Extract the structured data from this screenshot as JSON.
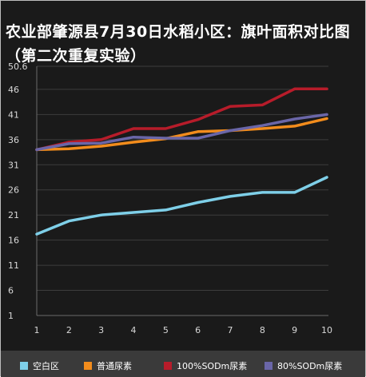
{
  "chart_data": {
    "type": "line",
    "title": "农业部肇源县7月30日水稻小区：旗叶面积对比图（第二次重复实验）",
    "xlabel": "",
    "ylabel": "",
    "x": [
      "1",
      "2",
      "3",
      "4",
      "5",
      "6",
      "7",
      "8",
      "9",
      "10"
    ],
    "ylim": [
      1,
      50.6
    ],
    "y_ticks": [
      "1",
      "6",
      "11",
      "16",
      "21",
      "26",
      "31",
      "36",
      "41",
      "46",
      "50.6"
    ],
    "grid": true,
    "legend_position": "bottom",
    "series": [
      {
        "name": "空白区",
        "color": "#7ecfe8",
        "values": [
          17.2,
          19.8,
          21.0,
          21.5,
          22.0,
          23.5,
          24.7,
          25.5,
          25.5,
          28.5
        ]
      },
      {
        "name": "普通尿素",
        "color": "#f28c1c",
        "values": [
          34.0,
          34.2,
          34.7,
          35.5,
          36.2,
          37.6,
          37.8,
          38.2,
          38.7,
          40.2
        ]
      },
      {
        "name": "100%SODm尿素",
        "color": "#b71c2a",
        "values": [
          34.0,
          35.5,
          36.0,
          38.2,
          38.2,
          40.0,
          42.6,
          42.9,
          46.1,
          46.1
        ]
      },
      {
        "name": "80%SODm尿素",
        "color": "#6a66a8",
        "values": [
          34.0,
          35.2,
          35.3,
          36.5,
          36.3,
          36.3,
          37.8,
          38.8,
          40.1,
          41.0
        ]
      }
    ]
  }
}
